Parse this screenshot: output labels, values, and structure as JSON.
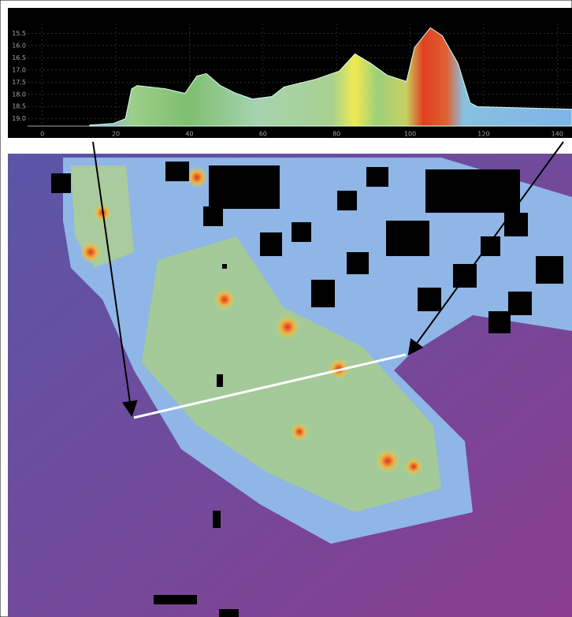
{
  "chart_data": {
    "type": "area",
    "x": [
      12.9,
      19.4,
      22.6,
      24.3,
      25.8,
      33.4,
      38.8,
      42.0,
      44.6,
      48.4,
      52.7,
      57.1,
      62.4,
      65.7,
      74.3,
      80.7,
      85.0,
      89.3,
      93.7,
      99.0,
      101.2,
      105.5,
      108.7,
      113.0,
      116.3,
      118.4,
      144
    ],
    "values": [
      19.26,
      19.19,
      19.0,
      17.77,
      17.64,
      17.77,
      17.96,
      17.25,
      17.15,
      17.64,
      17.96,
      18.19,
      18.09,
      17.7,
      17.38,
      17.05,
      16.34,
      16.73,
      17.21,
      17.47,
      16.08,
      15.27,
      15.59,
      16.73,
      18.35,
      18.51,
      18.61
    ],
    "xlim": [
      -4,
      144
    ],
    "xticks": [
      0,
      20,
      40,
      60,
      80,
      100,
      120,
      140
    ],
    "ylim": [
      19.3,
      15.1
    ],
    "yticks": [
      15.5,
      {
        "value": 16,
        "label": "16.0"
      },
      16.5,
      {
        "value": 17,
        "label": "17.0"
      },
      17.5,
      {
        "value": 18,
        "label": "18.0"
      },
      18.5,
      {
        "value": 19,
        "label": "19.0"
      }
    ],
    "grid": true
  }
}
